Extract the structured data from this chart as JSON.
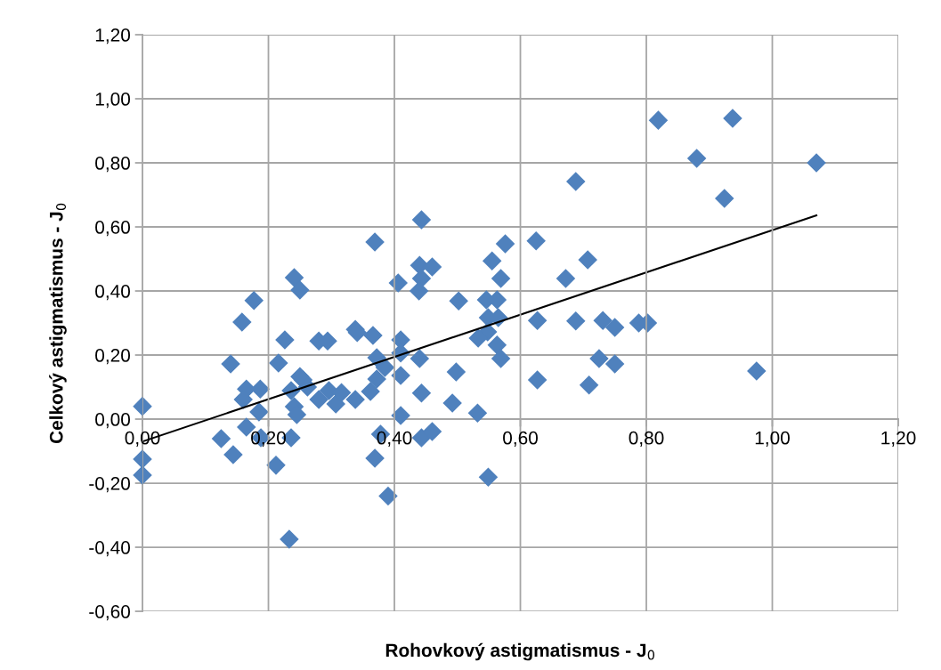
{
  "chart_data": {
    "type": "scatter",
    "xlabel": "Rohovkový astigmatismus - J$_{0}$",
    "ylabel": "Celkový astigmatismus - J$_{0}$",
    "xlim": [
      0,
      1.2
    ],
    "ylim": [
      -0.6,
      1.2
    ],
    "xticks": [
      {
        "value": 0,
        "label": "0,00"
      },
      {
        "value": 0.2,
        "label": "0,20"
      },
      {
        "value": 0.4,
        "label": "0,40"
      },
      {
        "value": 0.6,
        "label": "0,60"
      },
      {
        "value": 0.8,
        "label": "0,80"
      },
      {
        "value": 1.0,
        "label": "1,00"
      },
      {
        "value": 1.2,
        "label": "1,20"
      }
    ],
    "yticks": [
      {
        "value": -0.6,
        "label": "-0,60"
      },
      {
        "value": -0.4,
        "label": "-0,40"
      },
      {
        "value": -0.2,
        "label": "-0,20"
      },
      {
        "value": 0,
        "label": "0,00"
      },
      {
        "value": 0.2,
        "label": "0,20"
      },
      {
        "value": 0.4,
        "label": "0,40"
      },
      {
        "value": 0.6,
        "label": "0,60"
      },
      {
        "value": 0.8,
        "label": "0,80"
      },
      {
        "value": 1.0,
        "label": "1,00"
      },
      {
        "value": 1.2,
        "label": "1,20"
      }
    ],
    "grid": true,
    "legend": false,
    "series": [
      {
        "color": "#4f81bd",
        "marker": "diamond",
        "x": [
          0,
          0,
          0,
          0.125,
          0.144,
          0.14,
          0.158,
          0.177,
          0.165,
          0.16,
          0.187,
          0.185,
          0.165,
          0.188,
          0.212,
          0.216,
          0.226,
          0.241,
          0.25,
          0.236,
          0.25,
          0.255,
          0.241,
          0.245,
          0.236,
          0.262,
          0.233,
          0.28,
          0.294,
          0.28,
          0.296,
          0.307,
          0.316,
          0.338,
          0.341,
          0.338,
          0.366,
          0.372,
          0.385,
          0.362,
          0.372,
          0.378,
          0.369,
          0.369,
          0.443,
          0.44,
          0.46,
          0.443,
          0.406,
          0.439,
          0.502,
          0.546,
          0.563,
          0.555,
          0.576,
          0.569,
          0.625,
          0.672,
          0.549,
          0.565,
          0.627,
          0.548,
          0.533,
          0.563,
          0.569,
          0.498,
          0.627,
          0.443,
          0.492,
          0.532,
          0.41,
          0.41,
          0.41,
          0.44,
          0.41,
          0.443,
          0.46,
          0.39,
          0.549,
          0.688,
          0.707,
          0.688,
          0.731,
          0.75,
          0.788,
          0.802,
          0.725,
          0.75,
          0.709,
          0.819,
          0.937,
          0.88,
          1.07,
          0.924,
          0.975
        ],
        "values": [
          0.04,
          -0.125,
          -0.175,
          -0.061,
          -0.111,
          0.172,
          0.303,
          0.37,
          0.094,
          0.061,
          0.094,
          0.022,
          -0.025,
          -0.058,
          -0.144,
          0.175,
          0.247,
          0.442,
          0.403,
          0.089,
          0.133,
          0.122,
          0.039,
          0.014,
          -0.058,
          0.1,
          -0.375,
          0.244,
          0.244,
          0.061,
          0.089,
          0.047,
          0.083,
          0.28,
          0.27,
          0.061,
          0.261,
          0.192,
          0.161,
          0.086,
          0.125,
          -0.047,
          -0.122,
          0.553,
          0.622,
          0.48,
          0.475,
          0.439,
          0.425,
          0.4,
          0.369,
          0.372,
          0.372,
          0.494,
          0.547,
          0.439,
          0.556,
          0.439,
          0.317,
          0.317,
          0.308,
          0.272,
          0.253,
          0.231,
          0.189,
          0.147,
          0.122,
          0.081,
          0.05,
          0.019,
          0.011,
          0.247,
          0.206,
          0.189,
          0.136,
          -0.058,
          -0.039,
          -0.24,
          -0.181,
          0.742,
          0.497,
          0.306,
          0.308,
          0.286,
          0.3,
          0.3,
          0.189,
          0.172,
          0.106,
          0.933,
          0.939,
          0.814,
          0.8,
          0.689,
          0.15
        ]
      },
      {
        "type": "line",
        "color": "#000000",
        "marker": "none",
        "line_style": "solid",
        "x": [
          0,
          1.07
        ],
        "values": [
          -0.07,
          0.636
        ]
      }
    ]
  }
}
